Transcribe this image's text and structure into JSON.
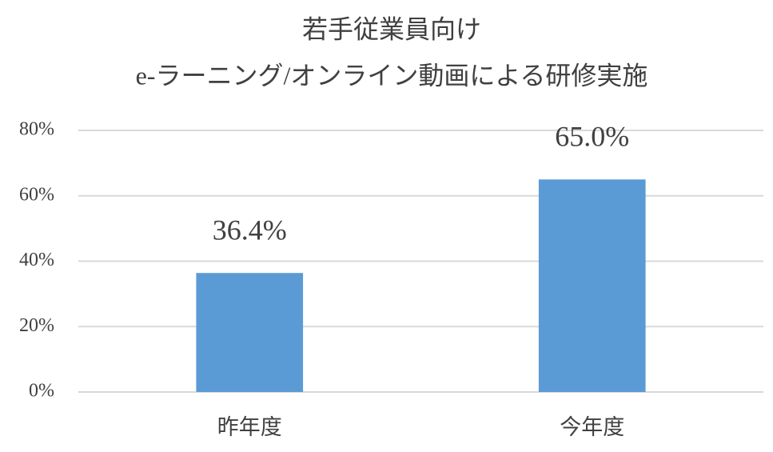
{
  "chart_data": {
    "type": "bar",
    "title": [
      "若手従業員向け",
      "e-ラーニング/オンライン動画による研修実施"
    ],
    "categories": [
      "昨年度",
      "今年度"
    ],
    "values": [
      36.4,
      65.0
    ],
    "value_labels": [
      "36.4%",
      "65.0%"
    ],
    "color": "#5b9bd5",
    "ylim": [
      0,
      80
    ],
    "yticks": [
      {
        "value": 0,
        "label": "0%"
      },
      {
        "value": 20,
        "label": "20%"
      },
      {
        "value": 40,
        "label": "40%"
      },
      {
        "value": 60,
        "label": "60%"
      },
      {
        "value": 80,
        "label": "80%"
      }
    ],
    "grid": true
  }
}
